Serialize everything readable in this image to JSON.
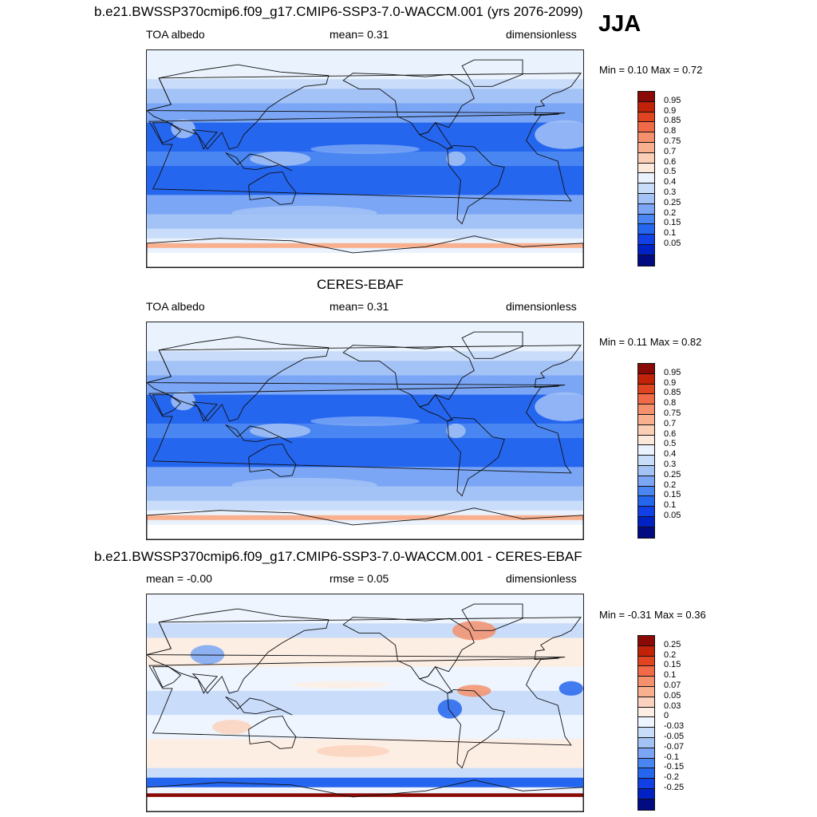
{
  "season": "JJA",
  "colors": {
    "abs_scale": [
      "#000c80",
      "#0022c4",
      "#1040e6",
      "#2566ef",
      "#4a86f2",
      "#7aa6f5",
      "#a3c2f6",
      "#c9dcfa",
      "#eaf2fd",
      "#fde9dc",
      "#fbcfb6",
      "#f8b08f",
      "#f5906c",
      "#f16a48",
      "#e04420",
      "#c12208",
      "#8a0a05"
    ],
    "diff_scale": [
      "#000c80",
      "#0022c4",
      "#1040e6",
      "#2566ef",
      "#4a86f2",
      "#7aa6f5",
      "#a3c2f6",
      "#c9dcfa",
      "#eef5fe",
      "#fdeee4",
      "#fbd2bd",
      "#f8b08f",
      "#f5906c",
      "#f16a48",
      "#e04420",
      "#c12208",
      "#8a0a05"
    ]
  },
  "panels": [
    {
      "title": "b.e21.BWSSP370cmip6.f09_g17.CMIP6-SSP3-7.0-WACCM.001 (yrs 2076-2099)",
      "left": "TOA albedo",
      "center": "mean=   0.31",
      "right": "dimensionless",
      "minmax": "Min =   0.10 Max =   0.72",
      "levels": [
        "0.95",
        "0.9",
        "0.85",
        "0.8",
        "0.75",
        "0.7",
        "0.6",
        "0.5",
        "0.4",
        "0.3",
        "0.25",
        "0.2",
        "0.15",
        "0.1",
        "0.05"
      ],
      "map_name": "model-toa-albedo-map"
    },
    {
      "title": "CERES-EBAF",
      "left": "TOA albedo",
      "center": "mean=   0.31",
      "right": "dimensionless",
      "minmax": "Min =   0.11 Max =   0.82",
      "levels": [
        "0.95",
        "0.9",
        "0.85",
        "0.8",
        "0.75",
        "0.7",
        "0.6",
        "0.5",
        "0.4",
        "0.3",
        "0.25",
        "0.2",
        "0.15",
        "0.1",
        "0.05"
      ],
      "map_name": "observed-toa-albedo-map"
    },
    {
      "title": "b.e21.BWSSP370cmip6.f09_g17.CMIP6-SSP3-7.0-WACCM.001 - CERES-EBAF",
      "left": "mean =  -0.00",
      "center": "rmse =   0.05",
      "right": "dimensionless",
      "minmax": "Min =  -0.31 Max =   0.36",
      "levels": [
        "0.25",
        "0.2",
        "0.15",
        "0.1",
        "0.07",
        "0.05",
        "0.03",
        "0",
        "-0.03",
        "-0.05",
        "-0.07",
        "-0.1",
        "-0.15",
        "-0.2",
        "-0.25"
      ],
      "map_name": "difference-albedo-map"
    }
  ]
}
